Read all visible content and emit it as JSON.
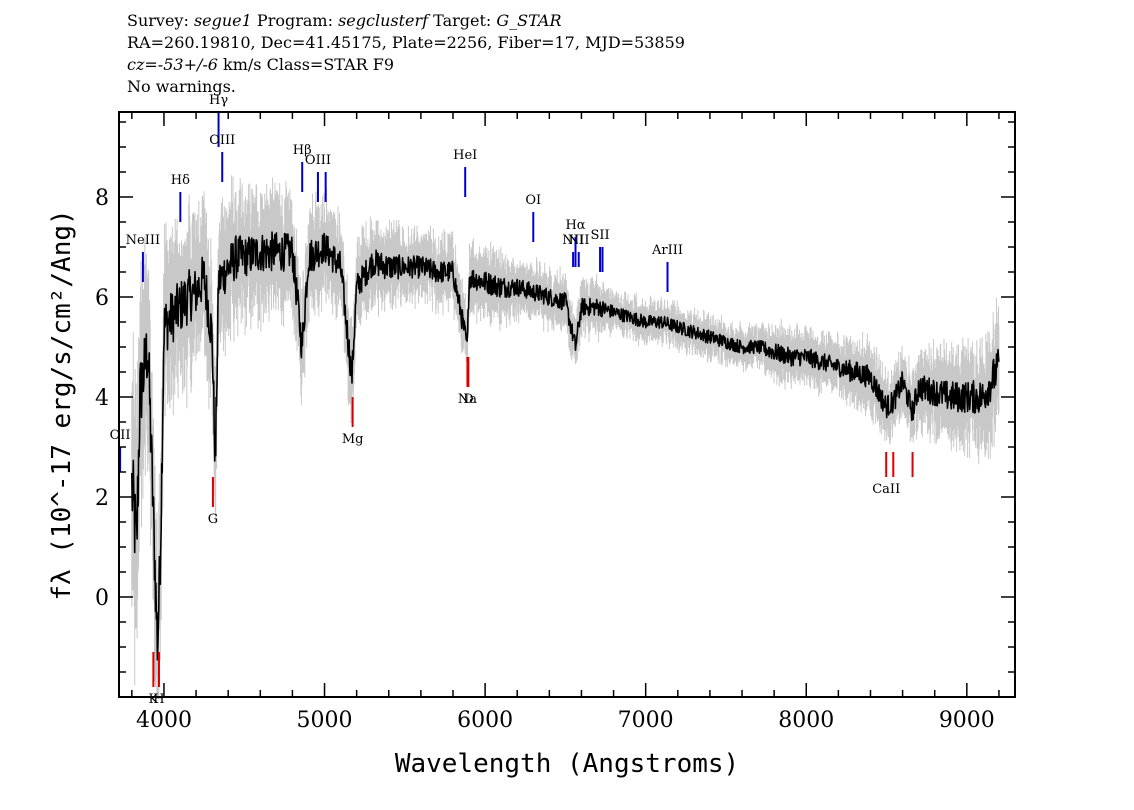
{
  "header": {
    "line1": {
      "survey_label": "Survey:",
      "survey": "segue1",
      "program_label": "Program:",
      "program": "segclusterf",
      "target_label": "Target:",
      "target": "G_STAR"
    },
    "line2": "RA=260.19810, Dec=41.45175, Plate=2256, Fiber=17, MJD=53859",
    "line3": {
      "cz_label": "cz=",
      "cz_value": "-53+/-6",
      "cz_unit": "km/s",
      "class_text": "Class=STAR F9"
    },
    "line4": "No warnings."
  },
  "chart_data": {
    "type": "line",
    "xlabel": "Wavelength (Angstroms)",
    "ylabel": "fλ (10^-17 erg/s/cm²/Ang)",
    "xlim": [
      3720,
      9300
    ],
    "ylim": [
      -2.0,
      9.7
    ],
    "x_ticks": [
      4000,
      5000,
      6000,
      7000,
      8000,
      9000
    ],
    "y_ticks": [
      0,
      2,
      4,
      6,
      8
    ],
    "colors": {
      "flux": "#000000",
      "error": "#c8c8c8",
      "emission": "#0000cc",
      "absorption": "#dd0000"
    },
    "series": [
      {
        "x": [
          3800,
          3830,
          3850,
          3880,
          3900,
          3920,
          3940,
          3960,
          3980,
          4000,
          4050,
          4100,
          4150,
          4200,
          4250,
          4300,
          4320,
          4340,
          4380,
          4450,
          4500,
          4600,
          4700,
          4800,
          4860,
          4900,
          5000,
          5100,
          5170,
          5200,
          5300,
          5400,
          5500,
          5600,
          5700,
          5800,
          5890,
          5900,
          6000,
          6100,
          6200,
          6300,
          6400,
          6500,
          6563,
          6600,
          6700,
          6800,
          6900,
          7000,
          7100,
          7200,
          7300,
          7400,
          7500,
          7600,
          7700,
          7800,
          7900,
          8000,
          8100,
          8200,
          8300,
          8400,
          8498,
          8542,
          8600,
          8662,
          8700,
          8800,
          8900,
          9000,
          9100,
          9200
        ],
        "y": [
          2.2,
          1.0,
          4.0,
          4.6,
          5.0,
          3.0,
          1.0,
          -1.0,
          1.2,
          5.4,
          5.6,
          5.8,
          6.0,
          6.1,
          6.4,
          5.2,
          2.6,
          6.3,
          6.5,
          6.8,
          6.8,
          6.9,
          6.9,
          6.9,
          5.0,
          6.8,
          7.0,
          6.6,
          4.4,
          6.2,
          6.7,
          6.6,
          6.6,
          6.6,
          6.5,
          6.5,
          5.0,
          6.4,
          6.3,
          6.2,
          6.2,
          6.1,
          6.0,
          5.9,
          5.0,
          5.8,
          5.8,
          5.7,
          5.6,
          5.5,
          5.5,
          5.4,
          5.3,
          5.2,
          5.1,
          5.0,
          5.0,
          4.9,
          4.8,
          4.8,
          4.7,
          4.6,
          4.5,
          4.4,
          3.8,
          3.9,
          4.3,
          3.7,
          4.2,
          4.1,
          4.0,
          4.0,
          4.0,
          4.6
        ],
        "err": [
          2.0,
          2.0,
          1.8,
          1.6,
          1.6,
          1.6,
          1.6,
          1.6,
          1.4,
          1.3,
          1.2,
          1.2,
          1.2,
          1.1,
          1.1,
          1.1,
          1.1,
          1.0,
          1.0,
          1.0,
          0.9,
          0.9,
          0.9,
          0.8,
          0.8,
          0.8,
          0.7,
          0.7,
          0.7,
          0.6,
          0.6,
          0.6,
          0.5,
          0.5,
          0.5,
          0.5,
          0.5,
          0.5,
          0.5,
          0.5,
          0.4,
          0.4,
          0.4,
          0.4,
          0.4,
          0.4,
          0.4,
          0.3,
          0.3,
          0.3,
          0.3,
          0.3,
          0.3,
          0.3,
          0.3,
          0.3,
          0.3,
          0.4,
          0.4,
          0.4,
          0.4,
          0.4,
          0.5,
          0.5,
          0.5,
          0.5,
          0.5,
          0.5,
          0.6,
          0.6,
          0.7,
          0.7,
          0.8,
          0.9
        ]
      }
    ],
    "emission_lines": [
      {
        "label": "OII",
        "x": 3727,
        "y0": 2.5,
        "y1": 3.0
      },
      {
        "label": "NeIII",
        "x": 3869,
        "y0": 6.3,
        "y1": 6.9
      },
      {
        "label": "Hδ",
        "x": 4102,
        "y0": 7.5,
        "y1": 8.1
      },
      {
        "label": "Hγ",
        "x": 4340,
        "y0": 9.0,
        "y1": 9.7
      },
      {
        "label": "OIII",
        "x": 4363,
        "y0": 8.3,
        "y1": 8.9
      },
      {
        "label": "Hβ",
        "x": 4861,
        "y0": 8.1,
        "y1": 8.7
      },
      {
        "label": "OIII",
        "x": 4959,
        "y0": 7.9,
        "y1": 8.5
      },
      {
        "label": "",
        "x": 5007,
        "y0": 7.9,
        "y1": 8.5
      },
      {
        "label": "HeI",
        "x": 5876,
        "y0": 8.0,
        "y1": 8.6
      },
      {
        "label": "OI",
        "x": 6300,
        "y0": 7.1,
        "y1": 7.7
      },
      {
        "label": "NII",
        "x": 6548,
        "y0": 6.6,
        "y1": 6.9
      },
      {
        "label": "Hα",
        "x": 6563,
        "y0": 6.6,
        "y1": 7.2
      },
      {
        "label": "NII",
        "x": 6583,
        "y0": 6.6,
        "y1": 6.9
      },
      {
        "label": "SII",
        "x": 6716,
        "y0": 6.5,
        "y1": 7.0
      },
      {
        "label": "",
        "x": 6731,
        "y0": 6.5,
        "y1": 7.0
      },
      {
        "label": "ArIII",
        "x": 7136,
        "y0": 6.1,
        "y1": 6.7
      }
    ],
    "absorption_lines": [
      {
        "label": "K",
        "x": 3934,
        "y0": -1.8,
        "y1": -1.1
      },
      {
        "label": "H",
        "x": 3969,
        "y0": -1.8,
        "y1": -1.1
      },
      {
        "label": "G",
        "x": 4305,
        "y0": 1.8,
        "y1": 2.4
      },
      {
        "label": "Mg",
        "x": 5175,
        "y0": 3.4,
        "y1": 4.0
      },
      {
        "label": "Na",
        "x": 5890,
        "y0": 4.2,
        "y1": 4.8
      },
      {
        "label": "D",
        "x": 5896,
        "y0": 4.2,
        "y1": 4.8
      },
      {
        "label": "CaII",
        "x": 8498,
        "y0": 2.4,
        "y1": 2.9
      },
      {
        "label": "",
        "x": 8542,
        "y0": 2.4,
        "y1": 2.9
      },
      {
        "label": "",
        "x": 8662,
        "y0": 2.4,
        "y1": 2.9
      }
    ]
  }
}
